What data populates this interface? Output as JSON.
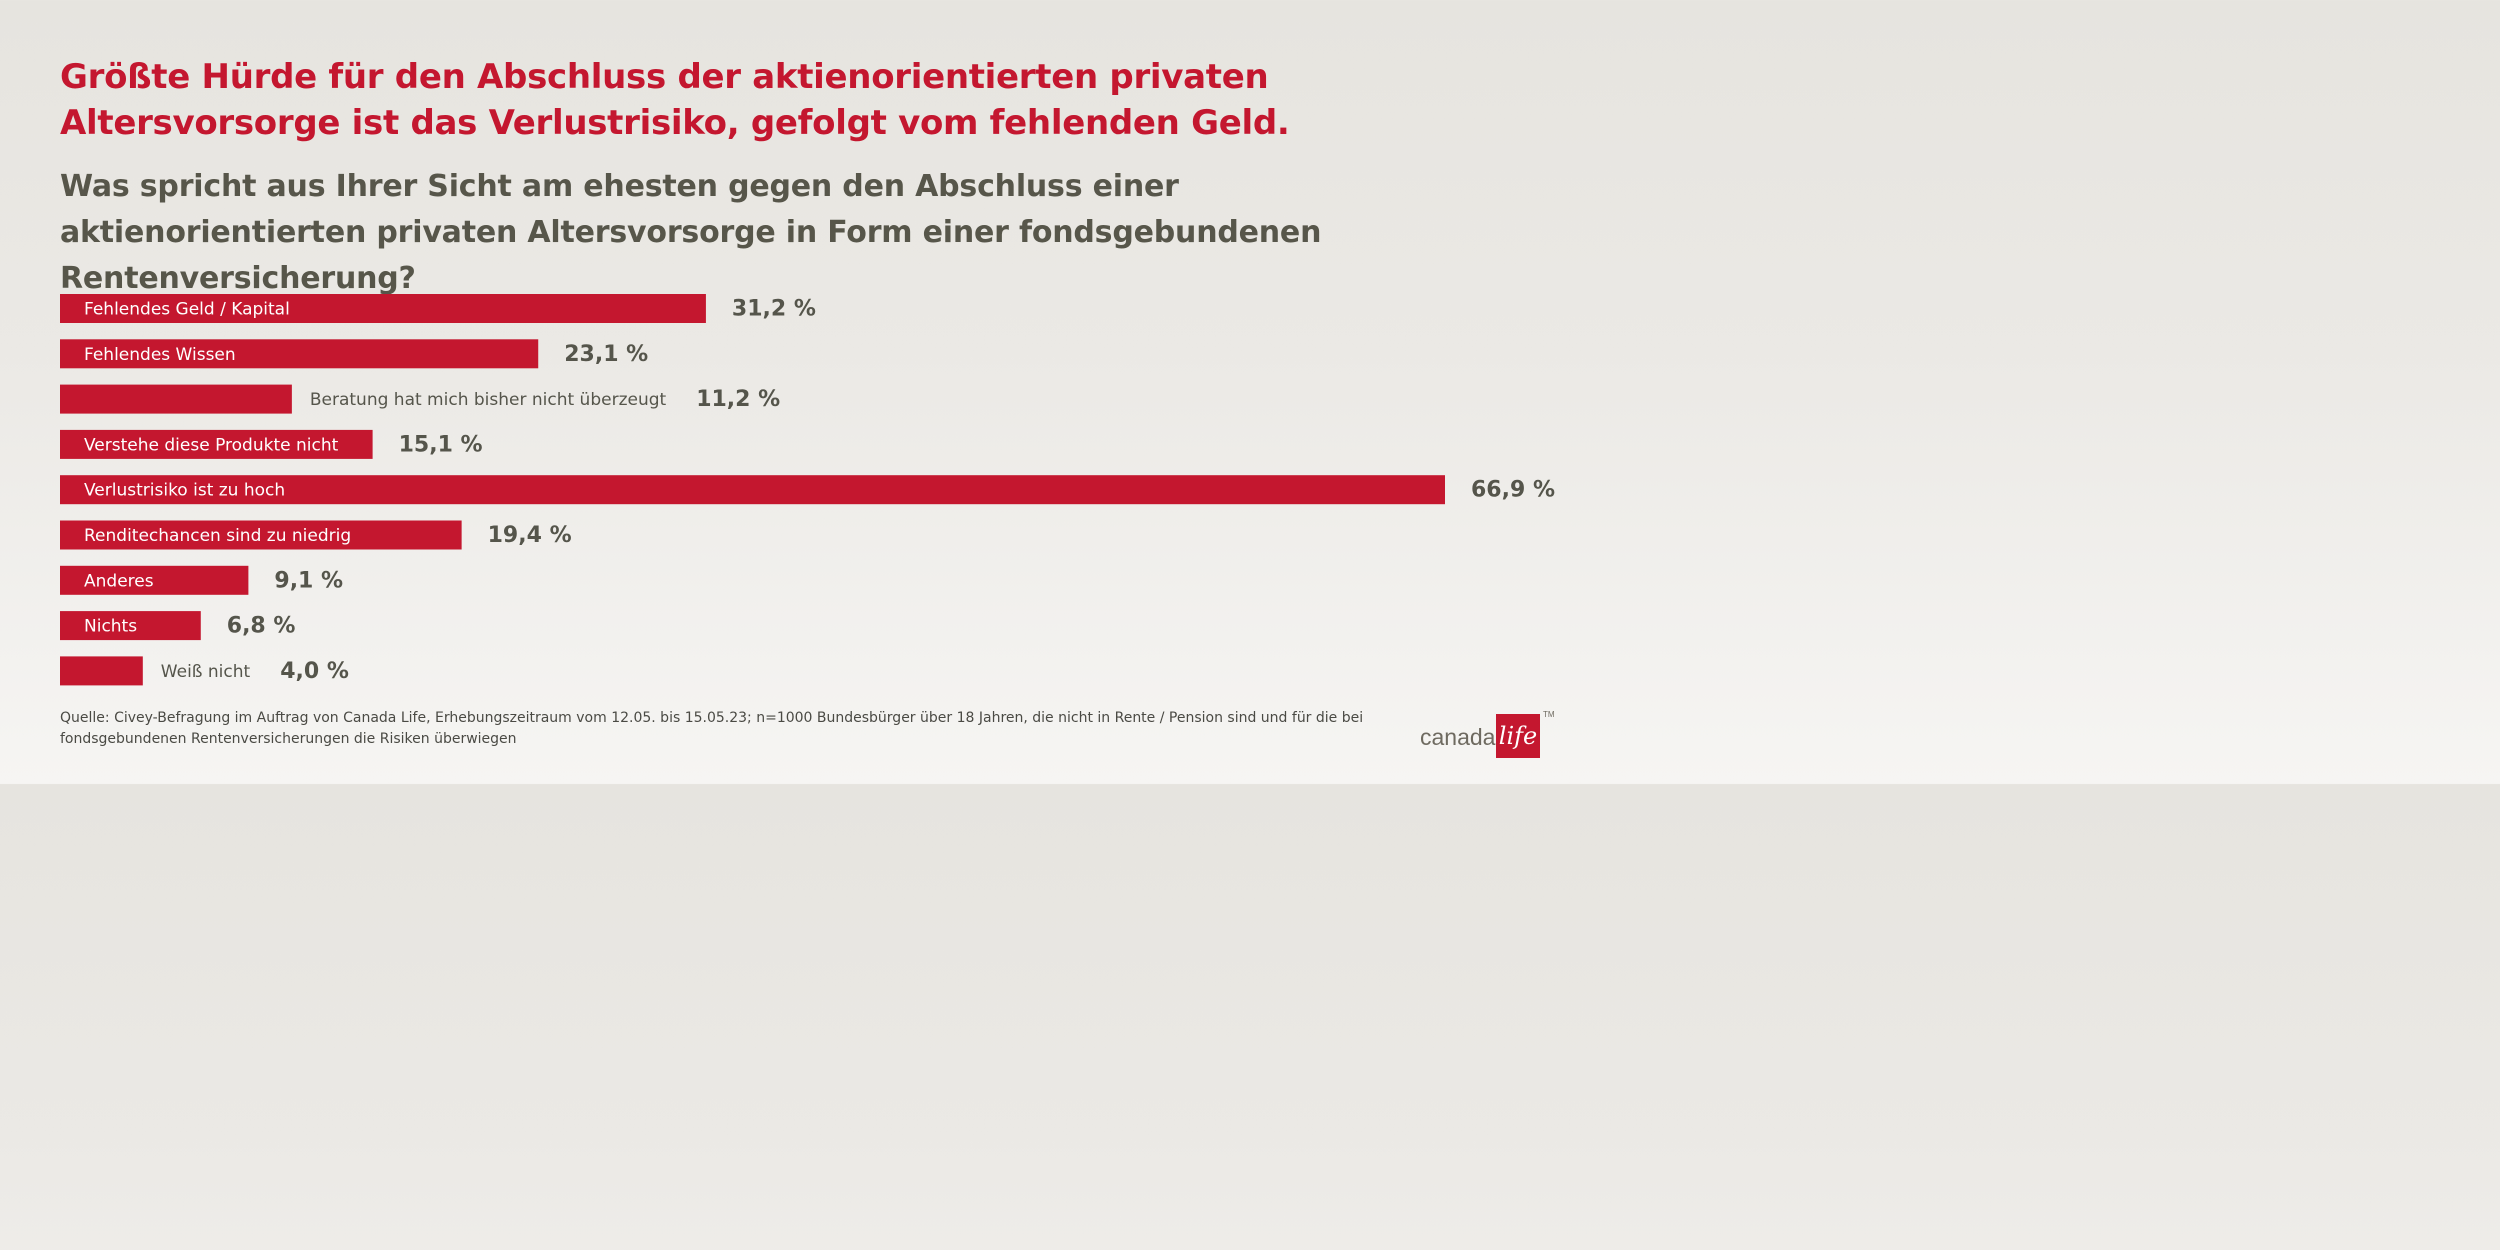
{
  "header": {
    "headline": "Größte Hürde für den Abschluss der aktienorientierten privaten Altersvorsorge ist das Verlustrisiko, gefolgt vom fehlenden Geld.",
    "question": "Was spricht aus Ihrer Sicht am ehesten gegen den Abschluss einer aktienorientierten privaten Altersvorsorge in Form einer fondsgebundenen Rentenversicherung?"
  },
  "chart_data": {
    "type": "bar",
    "orientation": "horizontal",
    "categories": [
      "Fehlendes Geld / Kapital",
      "Fehlendes Wissen",
      "Beratung hat mich bisher nicht überzeugt",
      "Verstehe diese Produkte nicht",
      "Verlustrisiko ist zu hoch",
      "Renditechancen sind zu niedrig",
      "Anderes",
      "Nichts",
      "Weiß nicht"
    ],
    "values": [
      31.2,
      23.1,
      11.2,
      15.1,
      66.9,
      19.4,
      9.1,
      6.8,
      4.0
    ],
    "value_labels": [
      "31,2 %",
      "23,1 %",
      "11,2 %",
      "15,1 %",
      "66,9 %",
      "19,4 %",
      "9,1 %",
      "6,8 %",
      "4,0 %"
    ],
    "unit": "%",
    "xlim": [
      0,
      66.9
    ],
    "grid": false,
    "legend": "none",
    "bar_color": "#c4172f",
    "label_inside_color": "#ffffff",
    "label_outside_color": "#55554b",
    "value_color": "#55554b"
  },
  "footer": {
    "source": "Quelle: Civey-Befragung im Auftrag von Canada Life, Erhebungszeitraum vom 12.05. bis 15.05.23; n=1000 Bundesbürger über 18 Jahren, die nicht in Rente / Pension sind und für die bei fondsgebundenen Rentenversicherungen die Risiken überwiegen"
  },
  "logo": {
    "word": "canada",
    "mark": "life",
    "tm": "TM",
    "brand_color": "#c4172f"
  }
}
